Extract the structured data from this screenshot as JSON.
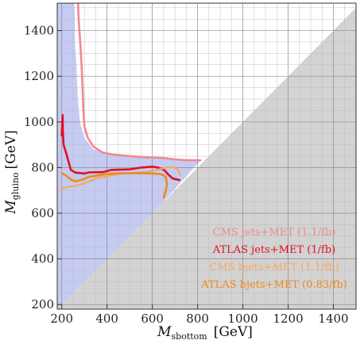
{
  "chart_data": {
    "type": "line",
    "title": "",
    "xlabel": {
      "main": "M",
      "sub": "sbottom",
      "unit": "[GeV]"
    },
    "ylabel": {
      "main": "M",
      "sub": "gluino",
      "unit": "[GeV]"
    },
    "xlim": [
      180,
      1500
    ],
    "ylim": [
      180,
      1520
    ],
    "x_ticks": [
      200,
      400,
      600,
      800,
      1000,
      1200,
      1400
    ],
    "y_ticks": [
      200,
      400,
      600,
      800,
      1000,
      1200,
      1400
    ],
    "x_tick_labels": [
      "200",
      "400",
      "600",
      "800",
      "1000",
      "1200",
      "1400"
    ],
    "y_tick_labels": [
      "200",
      "400",
      "600",
      "800",
      "1000",
      "1200",
      "1400"
    ],
    "grid": true,
    "legend_position": "bottom-right",
    "regions": [
      {
        "name": "kinematically-forbidden",
        "color": "#d3d3d3",
        "points": [
          [
            180,
            180
          ],
          [
            1500,
            1500
          ],
          [
            1500,
            180
          ]
        ]
      },
      {
        "name": "excluded-area",
        "color": "#c5cbf3",
        "points": [
          [
            180,
            180
          ],
          [
            180,
            1520
          ],
          [
            255,
            1520
          ],
          [
            258,
            1450
          ],
          [
            258,
            1350
          ],
          [
            265,
            1250
          ],
          [
            270,
            1120
          ],
          [
            280,
            1000
          ],
          [
            300,
            930
          ],
          [
            340,
            880
          ],
          [
            420,
            858
          ],
          [
            500,
            850
          ],
          [
            600,
            845
          ],
          [
            700,
            838
          ],
          [
            812,
            830
          ],
          [
            640,
            640
          ]
        ]
      }
    ],
    "series": [
      {
        "name": "CMS jets+MET (1.1/fb)",
        "color": "#f08890",
        "width": 2.6,
        "x": [
          272,
          275,
          282,
          288,
          292,
          295,
          300,
          315,
          340,
          380,
          420,
          480,
          550,
          650,
          700,
          750,
          812
        ],
        "y": [
          1520,
          1440,
          1340,
          1240,
          1150,
          1060,
          980,
          930,
          892,
          866,
          858,
          852,
          846,
          842,
          836,
          832,
          832
        ]
      },
      {
        "name": "ATLAS jets+MET (1/fb)",
        "color": "#e01020",
        "width": 2.6,
        "x": [
          200,
          204,
          205,
          208,
          222,
          240,
          260,
          300,
          320,
          380,
          420,
          500,
          550,
          600,
          625,
          652,
          670,
          690,
          720
        ],
        "y": [
          940,
          1030,
          960,
          900,
          855,
          790,
          778,
          774,
          779,
          780,
          790,
          792,
          800,
          804,
          800,
          790,
          770,
          752,
          745
        ]
      },
      {
        "name": "CMS bjets+MET (1.1/fb)",
        "color": "#f5a860",
        "width": 2.2,
        "x": [
          198,
          215,
          235,
          255,
          290,
          320,
          360,
          400,
          450,
          500,
          540,
          570,
          600,
          630,
          660,
          680,
          700,
          715,
          722
        ],
        "y": [
          705,
          712,
          718,
          718,
          728,
          738,
          755,
          762,
          772,
          776,
          778,
          780,
          786,
          792,
          800,
          802,
          800,
          790,
          768
        ]
      },
      {
        "name": "ATLAS bjets+MET (0.83/fb)",
        "color": "#ee8a1a",
        "width": 2.6,
        "x": [
          200,
          220,
          240,
          260,
          280,
          300,
          320,
          340,
          360,
          400,
          440,
          500,
          560,
          600,
          630,
          640,
          650,
          660,
          665,
          660,
          650
        ],
        "y": [
          776,
          764,
          748,
          740,
          744,
          750,
          760,
          762,
          766,
          772,
          774,
          775,
          775,
          774,
          772,
          770,
          766,
          758,
          730,
          700,
          668
        ]
      }
    ]
  }
}
